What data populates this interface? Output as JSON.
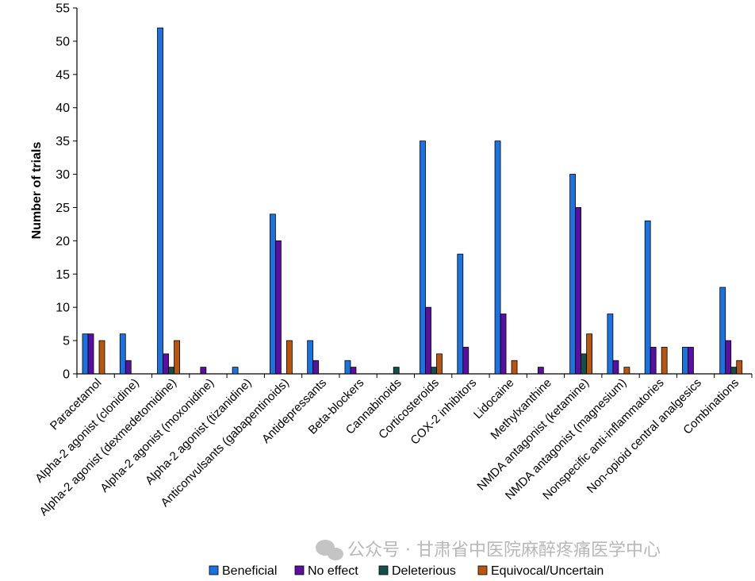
{
  "chart_data": {
    "type": "bar",
    "title": "",
    "xlabel": "",
    "ylabel": "Number of trials",
    "ylim": [
      0,
      55
    ],
    "yticks": [
      0,
      5,
      10,
      15,
      20,
      25,
      30,
      35,
      40,
      45,
      50,
      55
    ],
    "grid": false,
    "legend_position": "bottom",
    "categories": [
      "Paracetamol",
      "Alpha-2 agonist (clonidine)",
      "Alpha-2 agonist (dexmedetomidine)",
      "Alpha-2 agonist (moxonidine)",
      "Alpha-2 agonist (tizanidine)",
      "Anticonvulsants (gabapentinoids)",
      "Antidepressants",
      "Beta-blockers",
      "Cannabinoids",
      "Corticosteroids",
      "COX-2 inhibitors",
      "Lidocaine",
      "Methylxanthine",
      "NMDA antagonist (ketamine)",
      "NMDA antagonist (magnesium)",
      "Nonspecific anti-inflammatories",
      "Non-opioid central analgesics",
      "Combinations"
    ],
    "series": [
      {
        "name": "Beneficial",
        "color": "#1a73e0",
        "values": [
          6,
          6,
          52,
          0,
          1,
          24,
          5,
          2,
          0,
          35,
          18,
          35,
          0,
          30,
          9,
          23,
          4,
          13
        ]
      },
      {
        "name": "No effect",
        "color": "#5a0fa0",
        "values": [
          6,
          2,
          3,
          1,
          0,
          20,
          2,
          1,
          0,
          10,
          4,
          9,
          1,
          25,
          2,
          4,
          4,
          5
        ]
      },
      {
        "name": "Deleterious",
        "color": "#14504a",
        "values": [
          0,
          0,
          1,
          0,
          0,
          0,
          0,
          0,
          1,
          1,
          0,
          0,
          0,
          3,
          0,
          0,
          0,
          1
        ]
      },
      {
        "name": "Equivocal/Uncertain",
        "color": "#b8560f",
        "values": [
          5,
          0,
          5,
          0,
          0,
          5,
          0,
          0,
          0,
          3,
          0,
          2,
          0,
          6,
          1,
          4,
          0,
          2
        ]
      }
    ]
  },
  "watermark": {
    "text": "公众号 · 甘肃省中医院麻醉疼痛医学中心"
  }
}
